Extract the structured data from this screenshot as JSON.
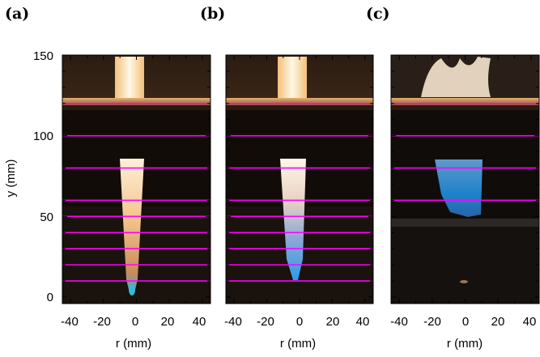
{
  "panel_labels": [
    "(a)",
    "(b)",
    "(c)"
  ],
  "y_axis": {
    "label": "y (mm)",
    "ticks": [
      "0",
      "50",
      "100",
      "150"
    ]
  },
  "x_axis": {
    "label": "r (mm)",
    "ticks": [
      "-40",
      "-20",
      "0",
      "20",
      "40"
    ]
  },
  "colors": {
    "measurement_line": "#ff00ff",
    "flame_blue": "#3aa0e6",
    "flame_yellow": "#ffd9a0",
    "background": "#1a1410"
  },
  "panels": [
    {
      "label": "(a)",
      "lines_mm": [
        10,
        20,
        30,
        40,
        50,
        60,
        80,
        100,
        120
      ]
    },
    {
      "label": "(b)",
      "lines_mm": [
        10,
        20,
        30,
        40,
        50,
        60,
        80,
        100,
        120
      ]
    },
    {
      "label": "(c)",
      "lines_mm": [
        60,
        80,
        100,
        120
      ]
    }
  ]
}
